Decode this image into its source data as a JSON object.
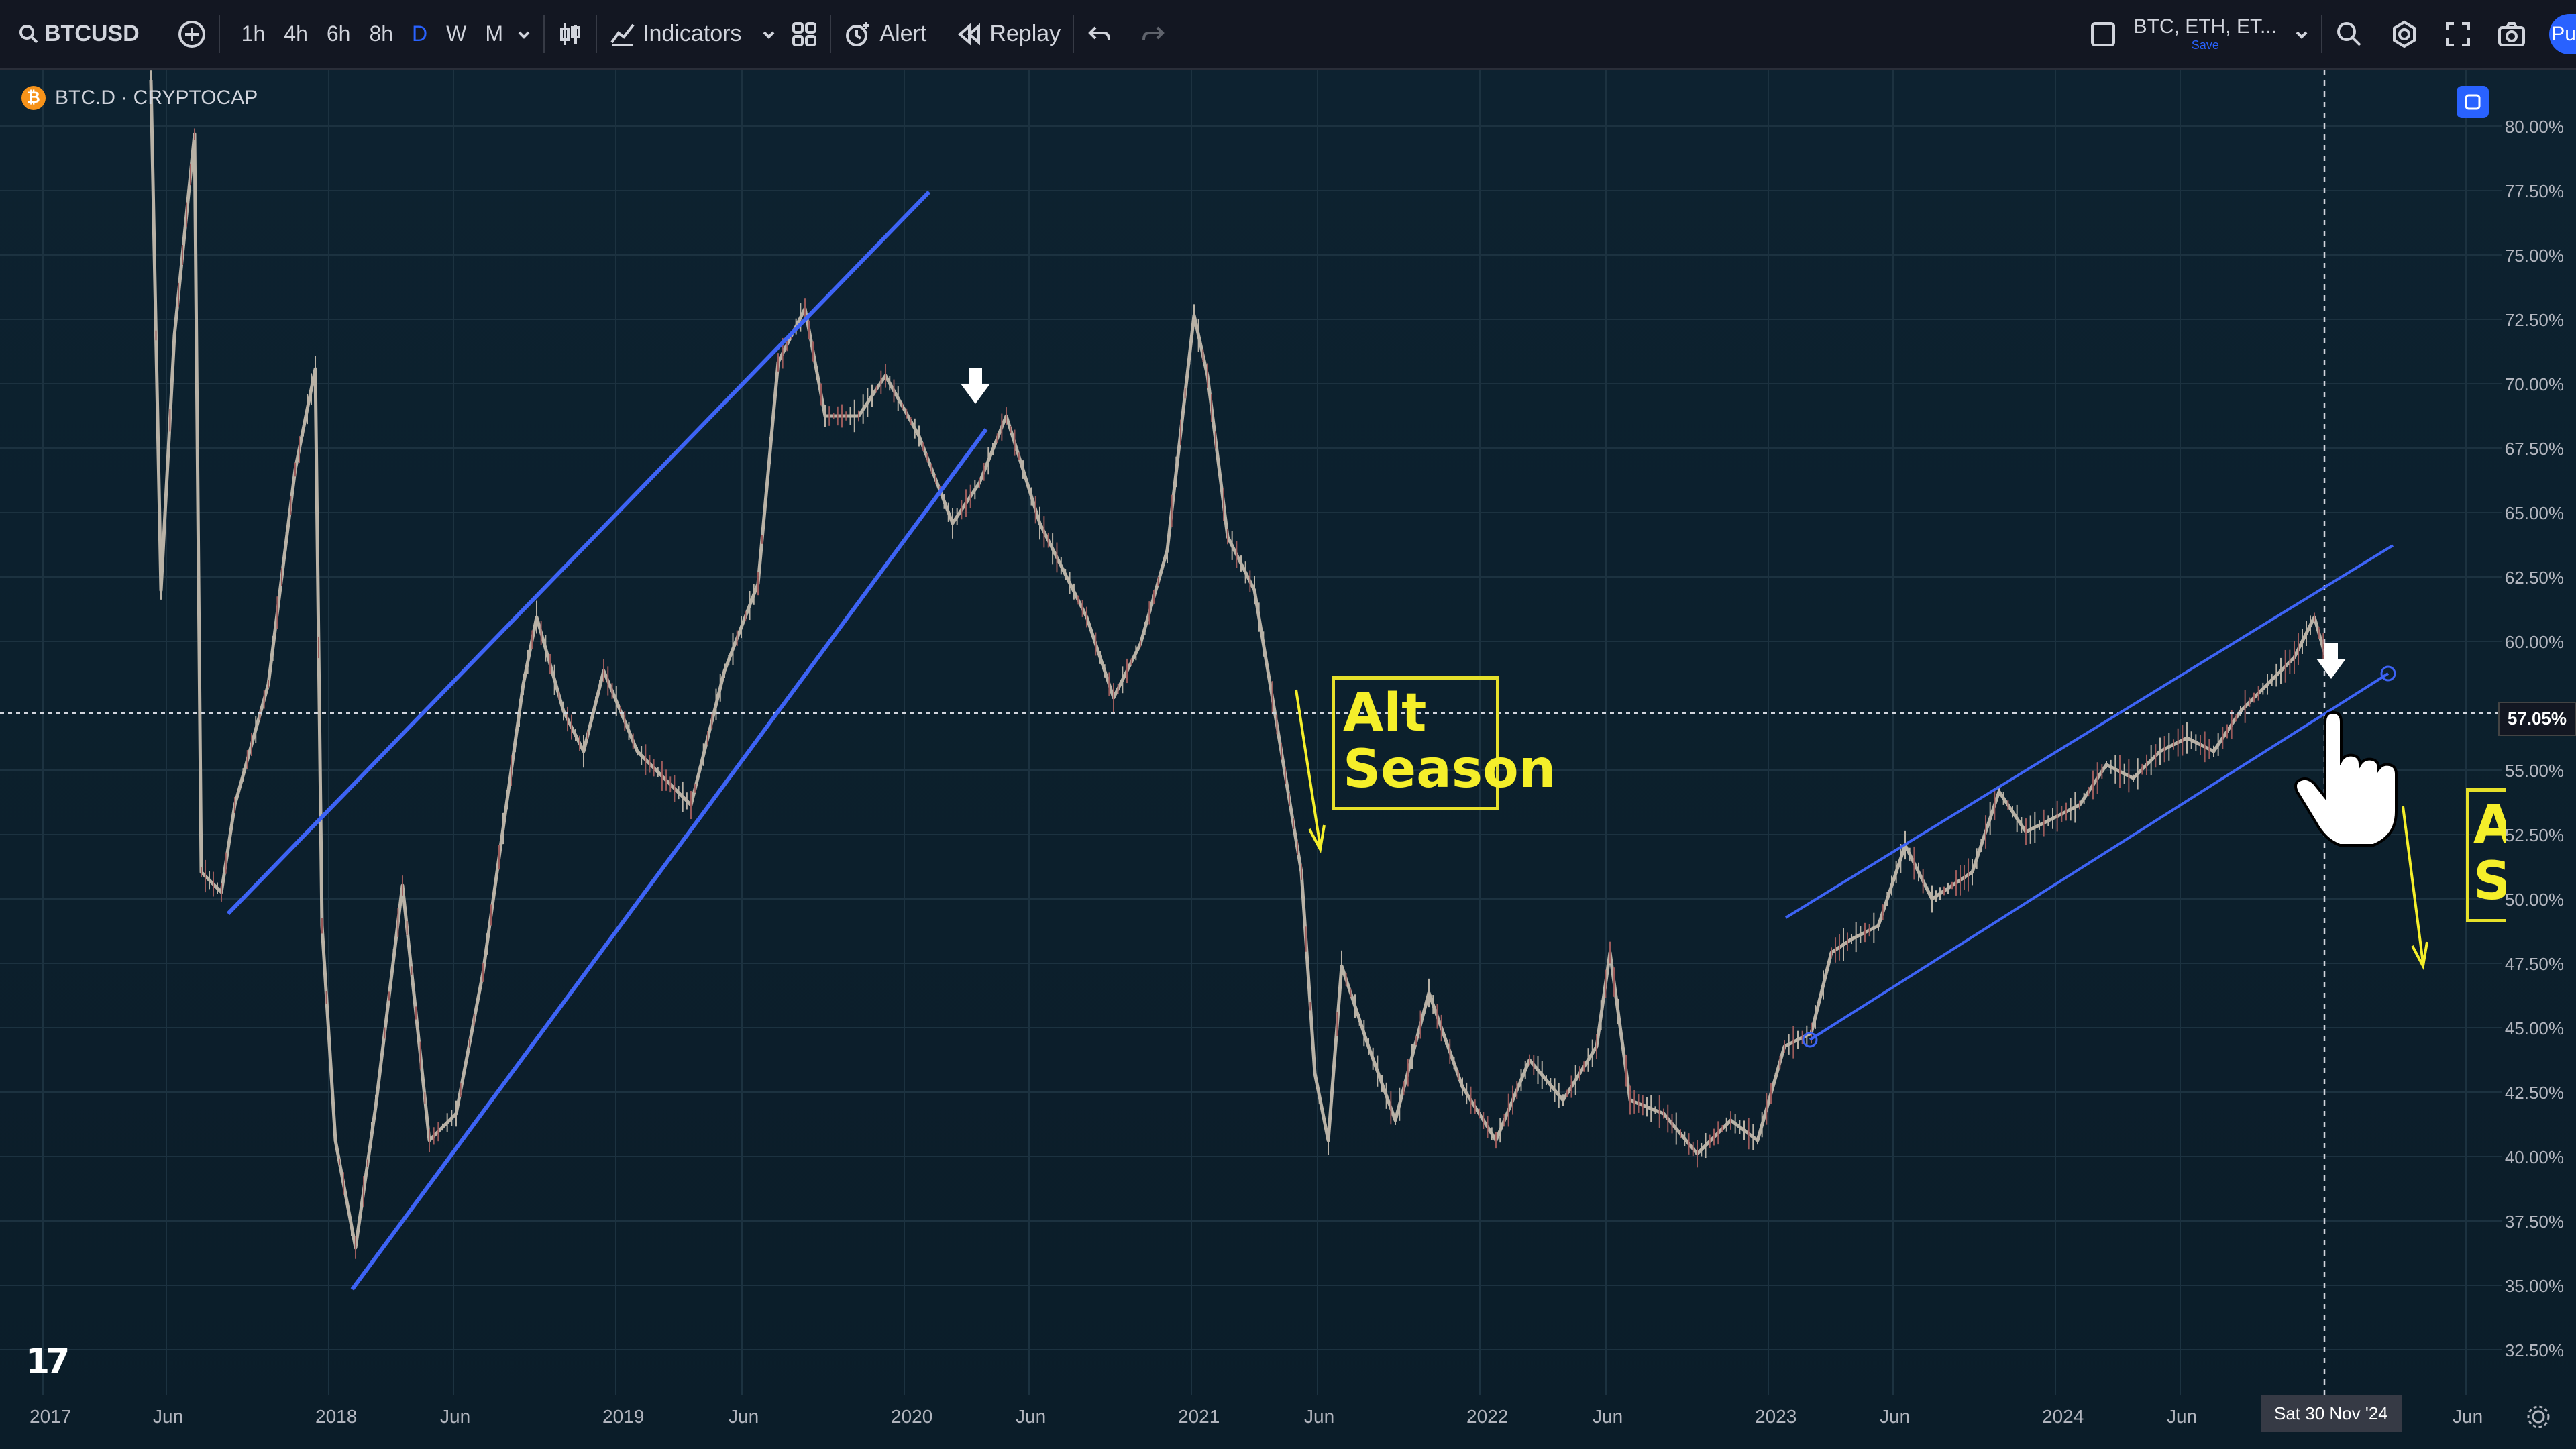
{
  "toolbar": {
    "symbol": "BTCUSD",
    "timeframes": [
      "1h",
      "4h",
      "6h",
      "8h",
      "D",
      "W",
      "M"
    ],
    "active_timeframe": "D",
    "indicators_label": "Indicators",
    "alert_label": "Alert",
    "replay_label": "Replay",
    "watchlist_label": "BTC, ETH, ET...",
    "save_label": "Save",
    "publish_label": "Pu"
  },
  "legend": {
    "badge": "₿",
    "title": "BTC.D · CRYPTOCAP"
  },
  "y_axis": {
    "ticks": [
      "80.00%",
      "77.50%",
      "75.00%",
      "72.50%",
      "70.00%",
      "67.50%",
      "65.00%",
      "62.50%",
      "60.00%",
      "55.00%",
      "52.50%",
      "50.00%",
      "47.50%",
      "45.00%",
      "42.50%",
      "40.00%",
      "37.50%",
      "35.00%",
      "32.50%"
    ],
    "current_price": "57.05%"
  },
  "x_axis": {
    "ticks": [
      "2017",
      "Jun",
      "2018",
      "Jun",
      "2019",
      "Jun",
      "2020",
      "Jun",
      "2021",
      "Jun",
      "2022",
      "Jun",
      "2023",
      "Jun",
      "2024",
      "Jun",
      "Jun"
    ],
    "crosshair_date": "Sat 30 Nov '24"
  },
  "annotations": {
    "alt_season_line1": "Alt",
    "alt_season_line2": "Season",
    "alt_season2_line1": "A",
    "alt_season2_line2": "S"
  },
  "colors": {
    "trendline": "#3d63f5",
    "annotation": "#f5ef2a",
    "candle_up": "#b9b2a6",
    "candle_down": "#9a5a5a",
    "accent": "#2962ff"
  }
}
